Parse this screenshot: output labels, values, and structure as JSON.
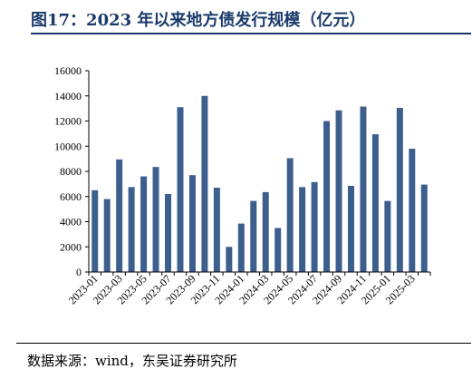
{
  "header": {
    "title": "图17：2023 年以来地方债发行规模（亿元）"
  },
  "footer": {
    "source": "数据来源：wind，东吴证券研究所"
  },
  "chart_data": {
    "type": "bar",
    "title": "图17：2023 年以来地方债发行规模（亿元）",
    "xlabel": "",
    "ylabel": "",
    "ylim": [
      0,
      16000
    ],
    "yticks": [
      0,
      2000,
      4000,
      6000,
      8000,
      10000,
      12000,
      14000,
      16000
    ],
    "grid": false,
    "legend": "none",
    "bar_color": "#3d5f8e",
    "categories": [
      "2023-01",
      "2023-02",
      "2023-03",
      "2023-04",
      "2023-05",
      "2023-06",
      "2023-07",
      "2023-08",
      "2023-09",
      "2023-10",
      "2023-11",
      "2023-12",
      "2024-01",
      "2024-02",
      "2024-03",
      "2024-04",
      "2024-05",
      "2024-06",
      "2024-07",
      "2024-08",
      "2024-09",
      "2024-10",
      "2024-11",
      "2024-12",
      "2025-01",
      "2025-02",
      "2025-03",
      "2025-04"
    ],
    "tick_labels": [
      "2023-01",
      "",
      "2023-03",
      "",
      "2023-05",
      "",
      "2023-07",
      "",
      "2023-09",
      "",
      "2023-11",
      "",
      "2024-01",
      "",
      "2024-03",
      "",
      "2024-05",
      "",
      "2024-07",
      "",
      "2024-09",
      "",
      "2024-11",
      "",
      "2025-01",
      "",
      "2025-03",
      ""
    ],
    "values": [
      6500,
      5800,
      8950,
      6750,
      7600,
      8350,
      6200,
      13100,
      7700,
      14000,
      6700,
      2000,
      3850,
      5650,
      6350,
      3500,
      9050,
      6750,
      7150,
      12000,
      12850,
      6850,
      13150,
      10950,
      5650,
      13050,
      9800,
      6950
    ]
  }
}
